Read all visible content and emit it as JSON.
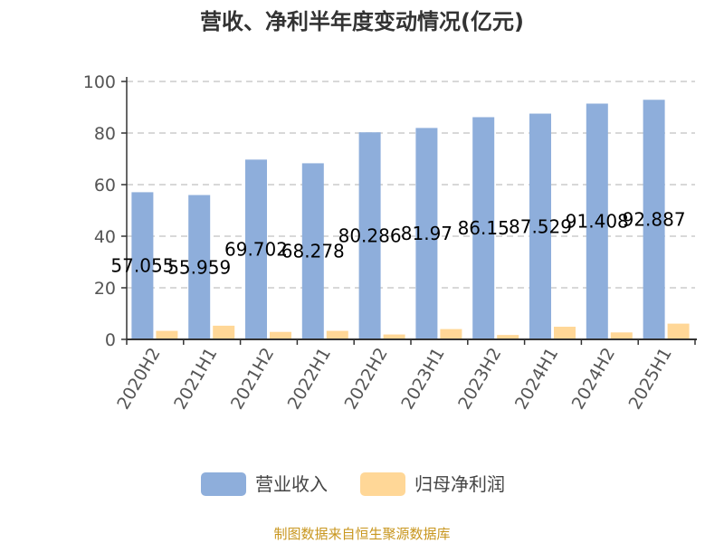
{
  "chart_data": {
    "type": "bar",
    "title": "营收、净利半年度变动情况(亿元)",
    "categories": [
      "2020H2",
      "2021H1",
      "2021H2",
      "2022H1",
      "2022H2",
      "2023H1",
      "2023H2",
      "2024H1",
      "2024H2",
      "2025H1"
    ],
    "series": [
      {
        "name": "营业收入",
        "color": "#8eaedb",
        "values": [
          57.055,
          55.959,
          69.702,
          68.278,
          80.286,
          81.97,
          86.15,
          87.529,
          91.408,
          92.887
        ],
        "labels": [
          "57.055",
          "55.959",
          "69.702",
          "68.278",
          "80.286",
          "81.97",
          "86.15",
          "87.529",
          "91.408",
          "92.887"
        ]
      },
      {
        "name": "归母净利润",
        "color": "#ffd797",
        "values": [
          3.3,
          5.3,
          2.9,
          3.3,
          1.9,
          4.0,
          1.7,
          4.9,
          2.7,
          6.1
        ]
      }
    ],
    "ylim": [
      0,
      100
    ],
    "yticks": [
      "0",
      "20",
      "40",
      "60",
      "80",
      "100"
    ],
    "grid": true,
    "legend_position": "bottom"
  },
  "source": "制图数据来自恒生聚源数据库"
}
